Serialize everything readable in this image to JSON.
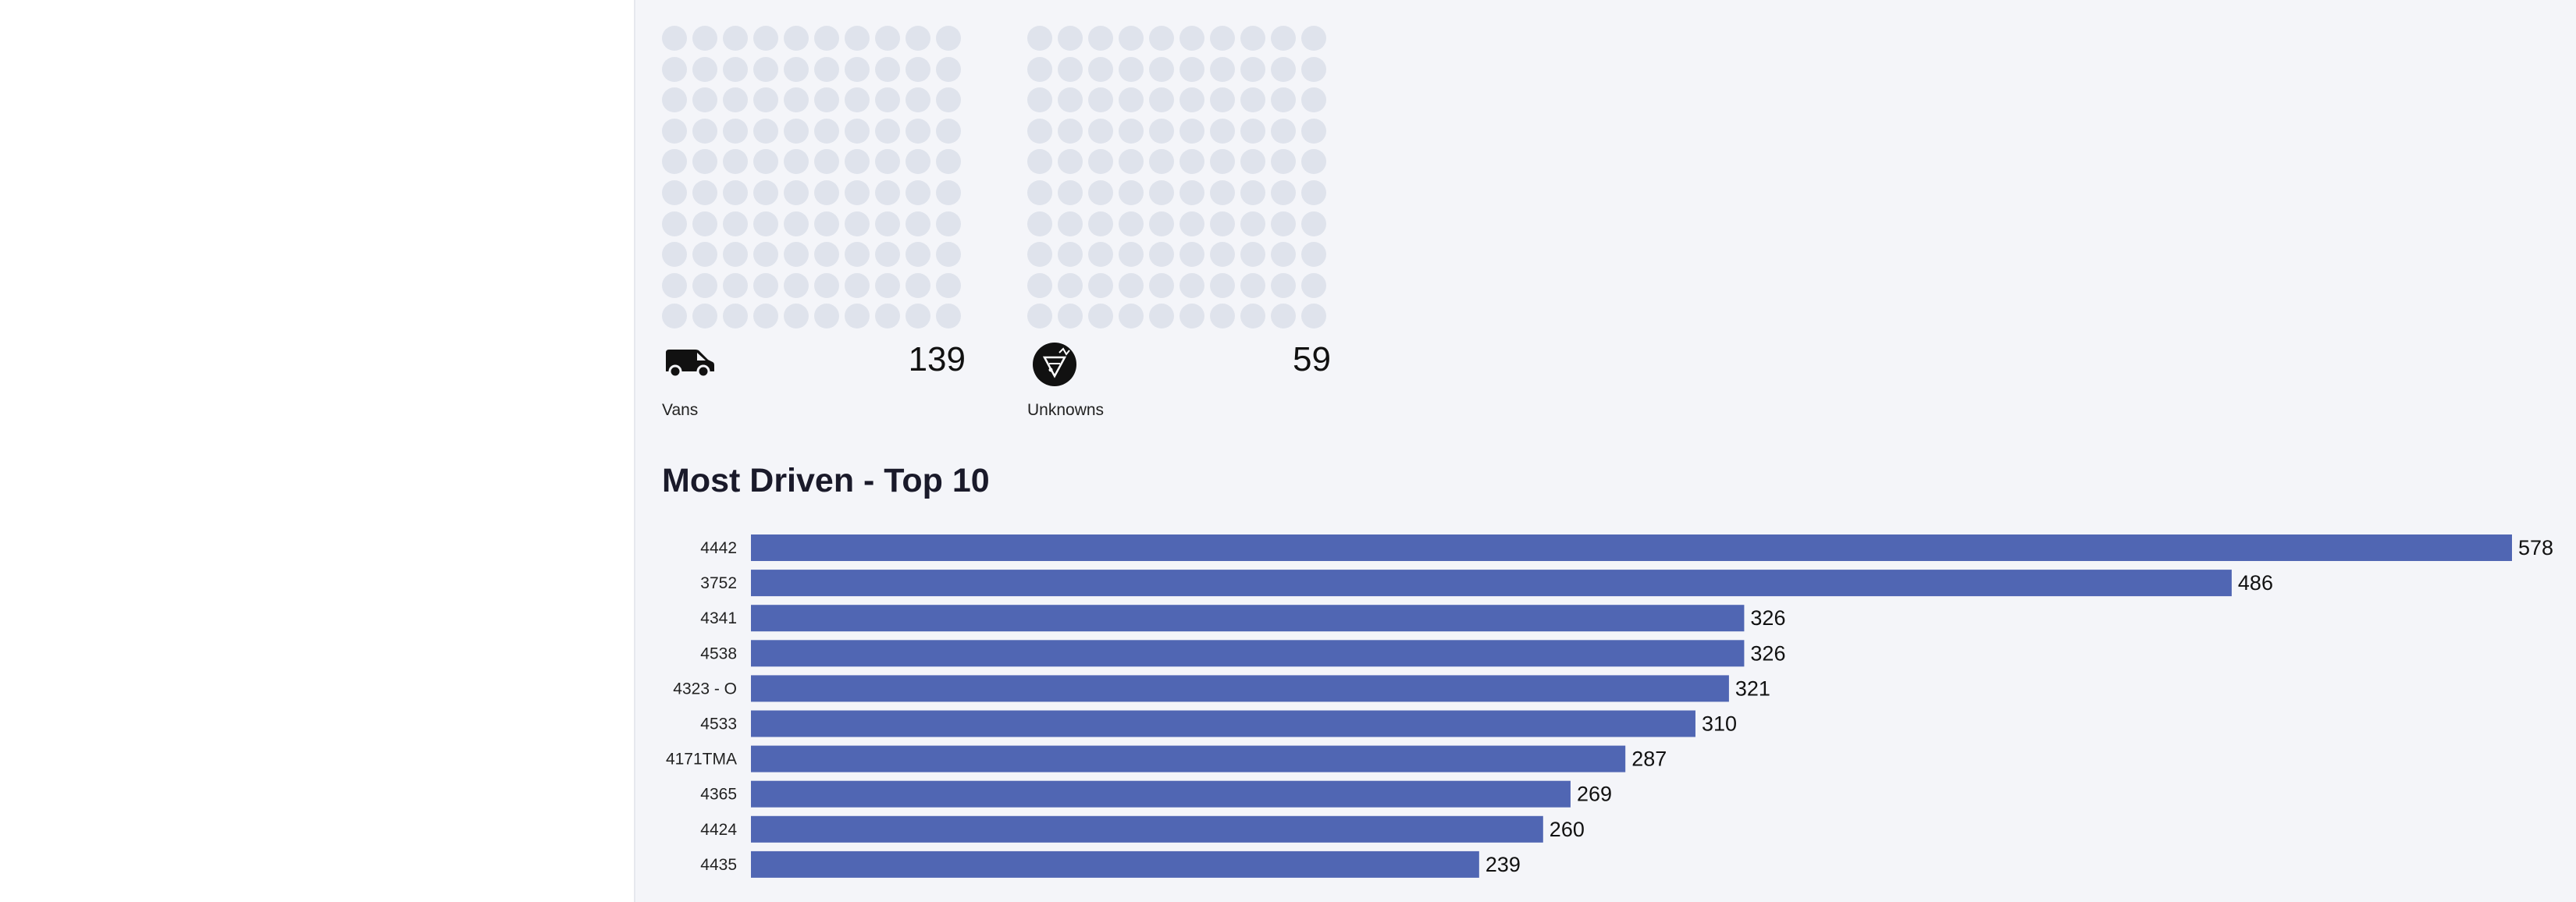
{
  "cards": [
    {
      "label": "Vans",
      "count": "139",
      "icon": "van-icon"
    },
    {
      "label": "Unknowns",
      "count": "59",
      "icon": "unknown-vehicle-icon"
    }
  ],
  "colors": {
    "bar": "#5066b3",
    "dot": "#dfe3ec",
    "background": "#f4f5f9"
  },
  "chart_data": {
    "type": "bar",
    "orientation": "horizontal",
    "title": "Most Driven - Top 10",
    "categories": [
      "4442",
      "3752",
      "4341",
      "4538",
      "4323 - O",
      "4533",
      "4171TMA",
      "4365",
      "4424",
      "4435"
    ],
    "values": [
      578,
      486,
      326,
      326,
      321,
      310,
      287,
      269,
      260,
      239
    ],
    "xlabel": "",
    "ylabel": "",
    "xlim": [
      0,
      578
    ],
    "grid": false,
    "data_labels": true
  }
}
